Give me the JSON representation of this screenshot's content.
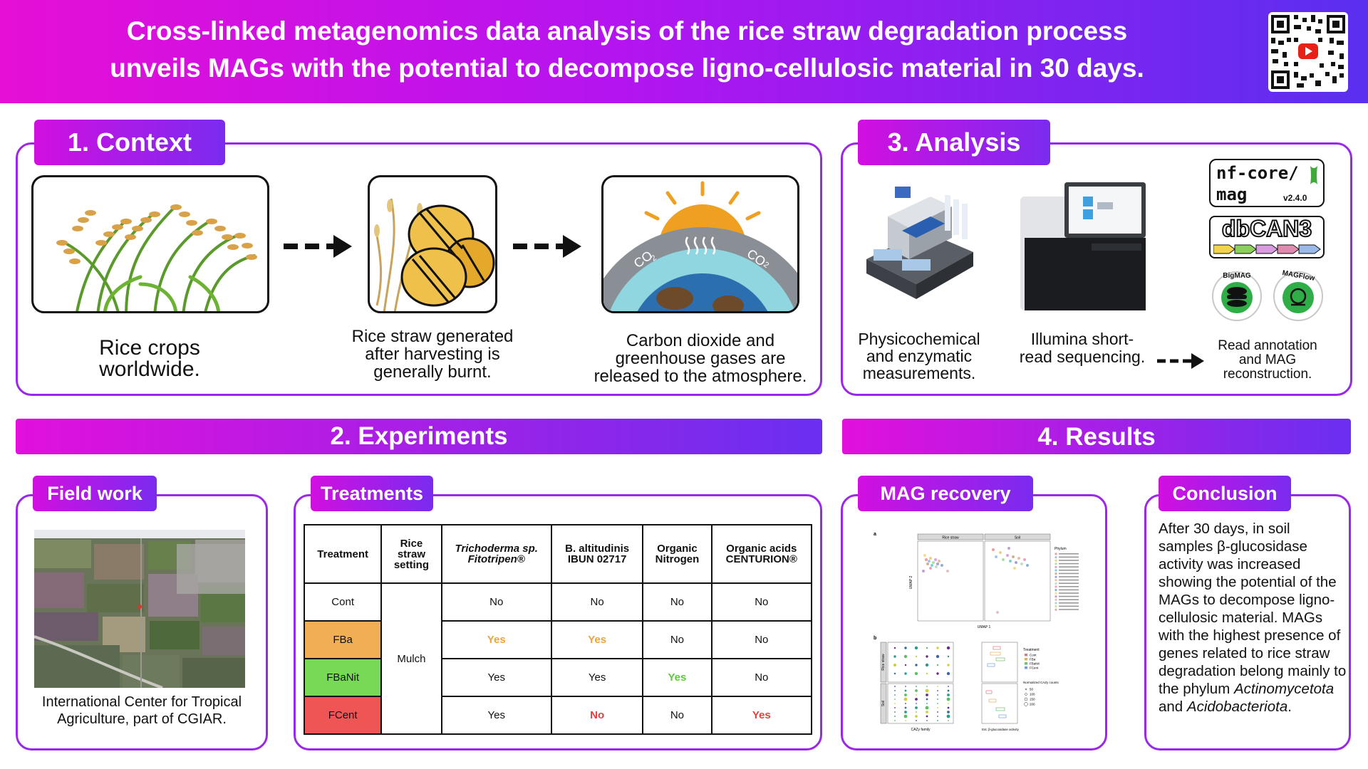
{
  "header": {
    "title_line1": "Cross-linked metagenomics data analysis of the rice straw degradation process",
    "title_line2": "unveils MAGs with the potential to decompose ligno-cellulosic material in 30 days."
  },
  "colors": {
    "magenta": "#e60fd6",
    "purple": "#7a2bf0",
    "blue": "#4a35e8",
    "orange_cell": "#f0ae55",
    "green_cell": "#78d957",
    "red_cell": "#f05555"
  },
  "context": {
    "tab": "1. Context",
    "items": [
      {
        "caption": "Rice crops worldwide.",
        "icon": "rice-plant-icon"
      },
      {
        "caption": "Rice straw generated after harvesting is generally burnt.",
        "icon": "straw-bale-icon"
      },
      {
        "caption": "Carbon dioxide and greenhouse gases are released to the atmosphere.",
        "icon": "earth-co2-icon"
      }
    ],
    "co2_label": "CO",
    "co2_sub": "2"
  },
  "analysis": {
    "tab": "3. Analysis",
    "cap1": "Physicochemical and enzymatic measurements.",
    "cap2": "Illumina short-read sequencing.",
    "cap3": "Read annotation and MAG reconstruction.",
    "nfcore_a": "nf-core/",
    "nfcore_b": "mag",
    "nfcore_version": "v2.4.0",
    "dbcan": "dbCAN3",
    "bigmag": "BigMAG",
    "magflow": "MAGFlow"
  },
  "experiments": {
    "bar": "2. Experiments",
    "fieldwork_tab": "Field work",
    "fieldwork_caption": "International Center for Tropical Agriculture, part of CGIAR.",
    "treatments_tab": "Treatments",
    "table": {
      "headers": [
        "Treatment",
        "Rice straw setting",
        "Trichoderma sp. Fitotripen®",
        "B. altitudinis IBUN 02717",
        "Organic Nitrogen",
        "Organic acids CENTURION®"
      ],
      "setting": "Mulch",
      "rows": [
        {
          "name": "Cont",
          "cells": [
            "No",
            "No",
            "No",
            "No"
          ]
        },
        {
          "name": "FBa",
          "cells": [
            "Yes",
            "Yes",
            "No",
            "No"
          ]
        },
        {
          "name": "FBaNit",
          "cells": [
            "Yes",
            "Yes",
            "Yes",
            "No"
          ]
        },
        {
          "name": "FCent",
          "cells": [
            "Yes",
            "No",
            "No",
            "Yes"
          ]
        }
      ]
    }
  },
  "results": {
    "bar": "4. Results",
    "mag_tab": "MAG recovery",
    "conclusion_tab": "Conclusion",
    "conclusion_p1": "After 30 days, in soil samples β-glucosidase activity was increased showing the potential of the MAGs to decompose ligno-cellulosic material. MAGs with the highest presence of genes related to rice straw degradation belong mainly to the phylum ",
    "conclusion_i1": "Actinomycetota",
    "conclusion_and": " and ",
    "conclusion_i2": "Acidobacteriota",
    "conclusion_end": ".",
    "fig": {
      "label_a": "a",
      "label_b": "b",
      "strip_left": "Rice straw",
      "strip_right": "Soil",
      "xlabel": "UMAP 1",
      "ylabel": "UMAP 2",
      "legend_title": "Phylum",
      "treatment_title": "Treatment",
      "treatments": [
        "Cont",
        "FBa",
        "FBaNit",
        "FCent"
      ],
      "cazy_title": "Normalized CAZy counts",
      "cazy_values": [
        "50",
        "100",
        "150",
        "200"
      ],
      "row_facet_top": "Rice straw",
      "row_facet_bottom": "Soil",
      "x_family": "CAZy family",
      "x_enz": "Est. β-glucosidase activity"
    }
  }
}
